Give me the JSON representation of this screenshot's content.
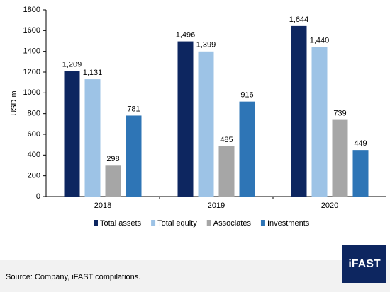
{
  "chart_data": {
    "type": "bar",
    "y_label": "USD m",
    "categories": [
      "2018",
      "2019",
      "2020"
    ],
    "series": [
      {
        "name": "Total assets",
        "color": "#0d2660",
        "values": [
          1209,
          1496,
          1644
        ],
        "value_labels": [
          "1,209",
          "1,496",
          "1,644"
        ]
      },
      {
        "name": "Total equity",
        "color": "#9dc3e6",
        "values": [
          1131,
          1399,
          1440
        ],
        "value_labels": [
          "1,131",
          "1,399",
          "1,440"
        ]
      },
      {
        "name": "Associates",
        "color": "#a6a6a6",
        "values": [
          298,
          485,
          739
        ]
      },
      {
        "name": "Investments",
        "color": "#2e75b6",
        "values": [
          781,
          916,
          449
        ]
      }
    ],
    "ylim": [
      0,
      1800
    ],
    "yticks": [
      0,
      200,
      400,
      600,
      800,
      1000,
      1200,
      1400,
      1600,
      1800
    ],
    "grid": false
  },
  "footer": {
    "source": "Source: Company, iFAST compilations.",
    "logo": "iFAST"
  }
}
